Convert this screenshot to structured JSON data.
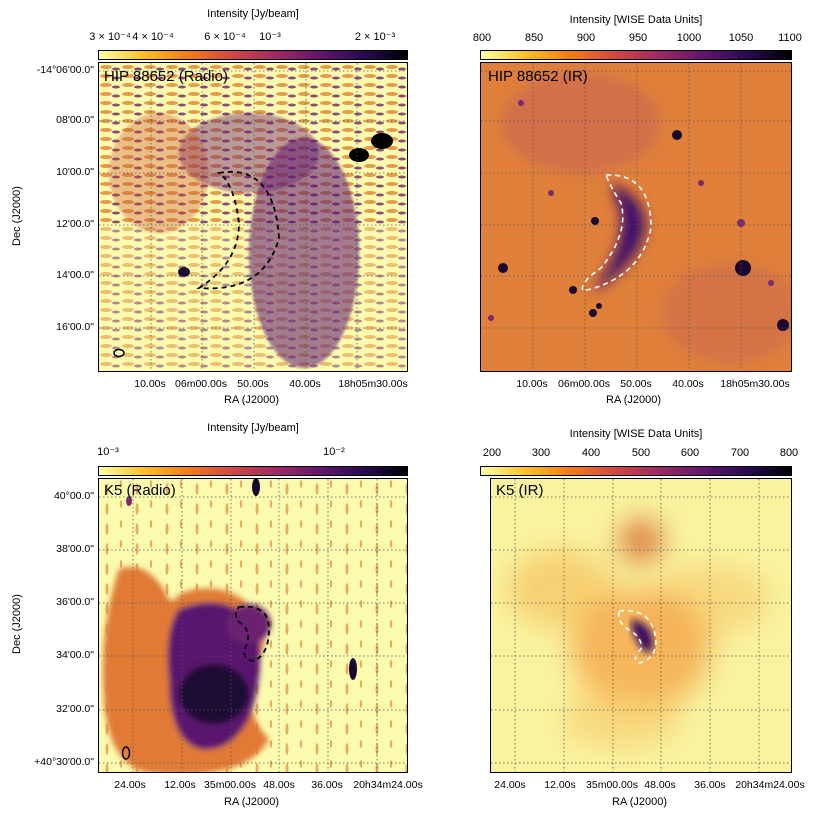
{
  "panels": [
    {
      "id": "hip-radio",
      "title": "HIP 88652 (Radio)",
      "colorbar_label": "Intensity [Jy/beam]",
      "colorbar_ticks": [
        "3 × 10⁻⁴",
        "4 × 10⁻⁴",
        "6 × 10⁻⁴",
        "10⁻³",
        "2 × 10⁻³"
      ],
      "colormap": "inferno_r",
      "yticks": [
        "-14°06'00.0\"",
        "08'00.0\"",
        "10'00.0\"",
        "12'00.0\"",
        "14'00.0\"",
        "16'00.0\""
      ],
      "xticks": [
        "10.00s",
        "06m00.00s",
        "50.00s",
        "40.00s",
        "18h05m30.00s"
      ],
      "xlabel": "RA (J2000)",
      "ylabel": "Dec (J2000)",
      "contour_color": "#000000"
    },
    {
      "id": "hip-ir",
      "title": "HIP 88652 (IR)",
      "colorbar_label": "Intensity [WISE Data Units]",
      "colorbar_ticks": [
        "800",
        "850",
        "900",
        "950",
        "1000",
        "1050",
        "1100"
      ],
      "colormap": "inferno_r",
      "yticks": [],
      "xticks": [
        "10.00s",
        "06m00.00s",
        "50.00s",
        "40.00s",
        "18h05m30.00s"
      ],
      "xlabel": "RA (J2000)",
      "ylabel": "",
      "contour_color": "#ffffff"
    },
    {
      "id": "k5-radio",
      "title": "K5 (Radio)",
      "colorbar_label": "Intensity [Jy/beam]",
      "colorbar_ticks": [
        "10⁻³",
        "10⁻²"
      ],
      "colormap": "inferno_r",
      "yticks": [
        "40°00.0\"",
        "38'00.0\"",
        "36'00.0\"",
        "34'00.0\"",
        "32'00.0\"",
        "+40°30'00.0\""
      ],
      "xticks": [
        "24.00s",
        "12.00s",
        "35m00.00s",
        "48.00s",
        "36.00s",
        "20h34m24.00s"
      ],
      "xlabel": "RA (J2000)",
      "ylabel": "Dec (J2000)",
      "contour_color": "#000000"
    },
    {
      "id": "k5-ir",
      "title": "K5 (IR)",
      "colorbar_label": "Intensity [WISE Data Units]",
      "colorbar_ticks": [
        "200",
        "300",
        "400",
        "500",
        "600",
        "700",
        "800"
      ],
      "colormap": "inferno_r",
      "yticks": [],
      "xticks": [
        "24.00s",
        "12.00s",
        "35m00.00s",
        "48.00s",
        "36.00s",
        "20h34m24.00s"
      ],
      "xlabel": "RA (J2000)",
      "ylabel": "",
      "contour_color": "#ffffff"
    }
  ]
}
